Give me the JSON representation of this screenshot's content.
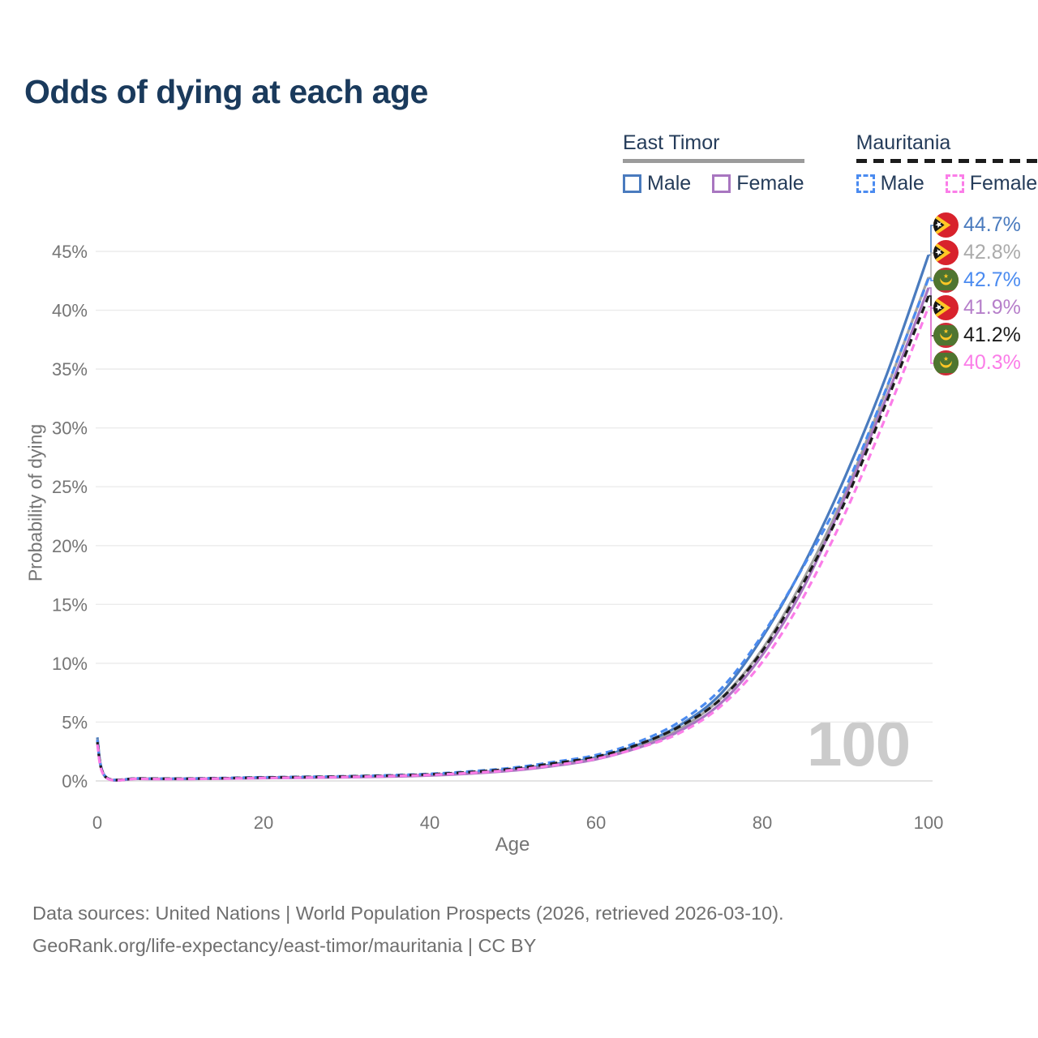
{
  "title": "Odds of dying at each age",
  "legend": {
    "groups": [
      {
        "name": "East Timor",
        "line_style": "solid",
        "underline_color": "#9B9B9B",
        "items": [
          {
            "label": "Male",
            "color": "#4A7BBE"
          },
          {
            "label": "Female",
            "color": "#A876C0"
          }
        ]
      },
      {
        "name": "Mauritania",
        "line_style": "dashed",
        "underline_color": "#1C1C1C",
        "items": [
          {
            "label": "Male",
            "color": "#4B8BF0"
          },
          {
            "label": "Female",
            "color": "#FB7DE8"
          }
        ]
      }
    ]
  },
  "watermark": "100",
  "footer": {
    "line1": "Data sources: United Nations | World Population Prospects (2026, retrieved 2026-03-10).",
    "line2": "GeoRank.org/life-expectancy/east-timor/mauritania | CC BY"
  },
  "chart_data": {
    "type": "line",
    "title": "Odds of dying at each age",
    "xlabel": "Age",
    "ylabel": "Probability of dying",
    "xlim": [
      0,
      100
    ],
    "ylim": [
      0,
      47
    ],
    "grid": "horizontal",
    "legend_position": "top-right",
    "x_ticks": [
      {
        "v": 0,
        "label": "0"
      },
      {
        "v": 20,
        "label": "20"
      },
      {
        "v": 40,
        "label": "40"
      },
      {
        "v": 60,
        "label": "60"
      },
      {
        "v": 80,
        "label": "80"
      },
      {
        "v": 100,
        "label": "100"
      }
    ],
    "y_ticks": [
      {
        "v": 0,
        "label": "0%"
      },
      {
        "v": 5,
        "label": "5%"
      },
      {
        "v": 10,
        "label": "10%"
      },
      {
        "v": 15,
        "label": "15%"
      },
      {
        "v": 20,
        "label": "20%"
      },
      {
        "v": 25,
        "label": "25%"
      },
      {
        "v": 30,
        "label": "30%"
      },
      {
        "v": 35,
        "label": "35%"
      },
      {
        "v": 40,
        "label": "40%"
      },
      {
        "v": 45,
        "label": "45%"
      }
    ],
    "x": [
      0,
      1,
      5,
      10,
      15,
      20,
      25,
      30,
      35,
      40,
      45,
      50,
      55,
      60,
      65,
      70,
      75,
      80,
      85,
      90,
      95,
      100
    ],
    "series": [
      {
        "name": "East Timor Male",
        "country": "East Timor",
        "flag_icon": "east-timor-flag-icon",
        "color": "#4A7BBE",
        "dash": "solid",
        "end_label": "44.7%",
        "label_color": "#4A7BBE",
        "values": [
          3.7,
          0.35,
          0.2,
          0.18,
          0.22,
          0.28,
          0.31,
          0.35,
          0.42,
          0.52,
          0.7,
          0.97,
          1.42,
          2.0,
          3.05,
          4.7,
          7.4,
          12.2,
          18.4,
          25.9,
          34.6,
          44.7
        ]
      },
      {
        "name": "East Timor (both sexes)",
        "country": "East Timor",
        "flag_icon": "east-timor-flag-icon",
        "color": "#A3A3A3",
        "dash": "solid",
        "end_label": "42.8%",
        "label_color": "#ABABAB",
        "values": [
          3.55,
          0.33,
          0.19,
          0.17,
          0.21,
          0.26,
          0.29,
          0.33,
          0.4,
          0.49,
          0.66,
          0.91,
          1.33,
          1.9,
          2.88,
          4.4,
          7.0,
          11.2,
          17.2,
          24.5,
          33.4,
          42.8
        ]
      },
      {
        "name": "Mauritania Male",
        "country": "Mauritania",
        "flag_icon": "mauritania-flag-icon",
        "color": "#4B8BF0",
        "dash": "dashed",
        "end_label": "42.7%",
        "label_color": "#4B8BF0",
        "values": [
          3.5,
          0.36,
          0.22,
          0.2,
          0.25,
          0.31,
          0.35,
          0.4,
          0.48,
          0.6,
          0.82,
          1.12,
          1.62,
          2.2,
          3.3,
          5.0,
          7.8,
          12.4,
          18.3,
          24.9,
          33.5,
          42.7
        ]
      },
      {
        "name": "East Timor Female",
        "country": "East Timor",
        "flag_icon": "east-timor-flag-icon",
        "color": "#A876C0",
        "dash": "solid",
        "end_label": "41.9%",
        "label_color": "#B67FCA",
        "values": [
          3.4,
          0.31,
          0.18,
          0.16,
          0.2,
          0.24,
          0.27,
          0.31,
          0.37,
          0.46,
          0.63,
          0.88,
          1.28,
          1.84,
          2.8,
          4.22,
          6.6,
          10.7,
          16.5,
          24.2,
          32.7,
          41.9
        ]
      },
      {
        "name": "Mauritania (both sexes)",
        "country": "Mauritania",
        "flag_icon": "mauritania-flag-icon",
        "color": "#1C1C1C",
        "dash": "dashed",
        "end_label": "41.2%",
        "label_color": "#1C1C1C",
        "values": [
          3.3,
          0.34,
          0.21,
          0.19,
          0.23,
          0.29,
          0.33,
          0.38,
          0.45,
          0.56,
          0.76,
          1.04,
          1.5,
          2.05,
          3.08,
          4.6,
          6.95,
          11.05,
          16.9,
          23.8,
          32.3,
          41.2
        ]
      },
      {
        "name": "Mauritania Female",
        "country": "Mauritania",
        "flag_icon": "mauritania-flag-icon",
        "color": "#FB7DE8",
        "dash": "dashed",
        "end_label": "40.3%",
        "label_color": "#FB7DE8",
        "values": [
          3.1,
          0.3,
          0.18,
          0.16,
          0.2,
          0.25,
          0.29,
          0.34,
          0.41,
          0.51,
          0.68,
          0.93,
          1.34,
          1.88,
          2.78,
          4.05,
          6.35,
          10.1,
          15.7,
          22.8,
          31.2,
          40.3
        ]
      }
    ]
  }
}
